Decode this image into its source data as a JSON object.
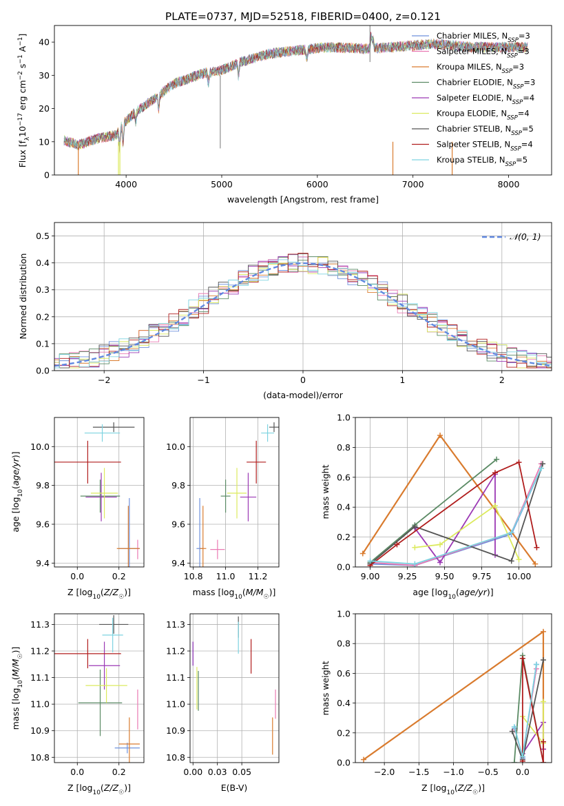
{
  "figure_title": "PLATE=0737, MJD=52518, FIBERID=0400, z=0.121",
  "models": [
    {
      "label": "Chabrier MILES, N",
      "sub": "SSP",
      "suffix": "=3",
      "color": "#6d90dc"
    },
    {
      "label": "Salpeter MILES, N",
      "sub": "SSP",
      "suffix": "=3",
      "color": "#ea7ab3"
    },
    {
      "label": "Kroupa MILES, N",
      "sub": "SSP",
      "suffix": "=3",
      "color": "#d97b2e"
    },
    {
      "label": "Chabrier ELODIE, N",
      "sub": "SSP",
      "suffix": "=3",
      "color": "#5a8a64"
    },
    {
      "label": "Salpeter ELODIE, N",
      "sub": "SSP",
      "suffix": "=4",
      "color": "#9b38b4"
    },
    {
      "label": "Kroupa ELODIE, N",
      "sub": "SSP",
      "suffix": "=4",
      "color": "#dcea5e"
    },
    {
      "label": "Chabrier STELIB, N",
      "sub": "SSP",
      "suffix": "=5",
      "color": "#545454"
    },
    {
      "label": "Salpeter STELIB, N",
      "sub": "SSP",
      "suffix": "=4",
      "color": "#b01c1c"
    },
    {
      "label": "Kroupa STELIB, N",
      "sub": "SSP",
      "suffix": "=5",
      "color": "#7dd3e0"
    }
  ],
  "chart_data": [
    {
      "id": "spectrum",
      "type": "line",
      "xlabel": "wavelength [Angstrom, rest frame]",
      "ylabel": "Flux [fλ10⁻¹⁷ erg cm⁻² s⁻¹ A⁻¹]",
      "xlim": [
        3250,
        8450
      ],
      "ylim": [
        0,
        45
      ],
      "xticks": [
        4000,
        5000,
        6000,
        7000,
        8000
      ],
      "yticks": [
        0,
        10,
        20,
        30,
        40
      ],
      "grid": false,
      "legend": "top-right",
      "x_range_data": [
        3350,
        8200
      ],
      "continuum_points": [
        [
          3350,
          10.5
        ],
        [
          3500,
          9
        ],
        [
          3700,
          11
        ],
        [
          3900,
          12
        ],
        [
          3950,
          15
        ],
        [
          4100,
          19
        ],
        [
          4300,
          23
        ],
        [
          4500,
          27.5
        ],
        [
          4800,
          30.5
        ],
        [
          5000,
          31.5
        ],
        [
          5200,
          34
        ],
        [
          5500,
          36.5
        ],
        [
          5800,
          37.5
        ],
        [
          6100,
          38.5
        ],
        [
          6500,
          38
        ],
        [
          6800,
          38.5
        ],
        [
          7200,
          39.5
        ],
        [
          7600,
          38.5
        ],
        [
          8200,
          38.5
        ]
      ]
    },
    {
      "id": "residuals",
      "type": "histogram",
      "xlabel": "(data-model)/error",
      "ylabel": "Normed distribution",
      "xlim": [
        -2.5,
        2.5
      ],
      "ylim": [
        0,
        0.55
      ],
      "xticks": [
        -2,
        -1,
        0,
        1,
        2
      ],
      "yticks": [
        0.0,
        0.1,
        0.2,
        0.3,
        0.4,
        0.5
      ],
      "grid": true,
      "legend": "top-right",
      "reference_curve_label": "𝒩(0, 1)",
      "bin_width": 0.1
    },
    {
      "id": "age-vs-Z",
      "type": "errorbar",
      "xlabel": "Z [log₁₀(Z/Z☉)]",
      "ylabel": "age  [log₁₀(age/yr)]",
      "xlim": [
        -0.11,
        0.32
      ],
      "ylim": [
        9.38,
        10.15
      ],
      "xticks": [
        0.0,
        0.2
      ],
      "yticks": [
        9.4,
        9.6,
        9.8,
        10.0
      ],
      "points": [
        {
          "x": 0.25,
          "xe": 0.05,
          "y": 9.475,
          "ye": 0.26
        },
        {
          "x": 0.29,
          "xe": 0.0,
          "y": 9.47,
          "ye": 0.05
        },
        {
          "x": 0.245,
          "xe": 0.055,
          "y": 9.475,
          "ye": 0.22
        },
        {
          "x": 0.11,
          "xe": 0.095,
          "y": 9.745,
          "ye": 0.085
        },
        {
          "x": 0.115,
          "xe": 0.075,
          "y": 9.74,
          "ye": 0.125
        },
        {
          "x": 0.13,
          "xe": 0.065,
          "y": 9.76,
          "ye": 0.13
        },
        {
          "x": 0.175,
          "xe": 0.1,
          "y": 10.1,
          "ye": 0.025
        },
        {
          "x": 0.05,
          "xe": 0.16,
          "y": 9.92,
          "ye": 0.11
        },
        {
          "x": 0.12,
          "xe": 0.085,
          "y": 10.07,
          "ye": 0.045
        }
      ]
    },
    {
      "id": "age-vs-mass",
      "type": "errorbar",
      "xlabel": "mass [log₁₀(M/M☉)]",
      "ylabel": "",
      "xlim": [
        10.78,
        11.33
      ],
      "ylim": [
        9.38,
        10.15
      ],
      "xticks": [
        10.8,
        11.0,
        11.2
      ],
      "yticks": [
        9.4,
        9.6,
        9.8,
        10.0
      ],
      "points": [
        {
          "x": 10.84,
          "xe": 0.02,
          "y": 9.475,
          "ye": 0.26
        },
        {
          "x": 10.95,
          "xe": 0.045,
          "y": 9.47,
          "ye": 0.05
        },
        {
          "x": 10.86,
          "xe": 0.02,
          "y": 9.475,
          "ye": 0.22
        },
        {
          "x": 11.0,
          "xe": 0.03,
          "y": 9.745,
          "ye": 0.085
        },
        {
          "x": 11.14,
          "xe": 0.05,
          "y": 9.74,
          "ye": 0.125
        },
        {
          "x": 11.07,
          "xe": 0.06,
          "y": 9.76,
          "ye": 0.13
        },
        {
          "x": 11.3,
          "xe": 0.03,
          "y": 10.1,
          "ye": 0.025
        },
        {
          "x": 11.19,
          "xe": 0.06,
          "y": 9.92,
          "ye": 0.11
        },
        {
          "x": 11.26,
          "xe": 0.04,
          "y": 10.07,
          "ye": 0.045
        }
      ]
    },
    {
      "id": "mass-weight-vs-age",
      "type": "line",
      "xlabel": "age  [log₁₀(age/yr)]",
      "ylabel": "mass weight",
      "xlim": [
        8.9,
        10.22
      ],
      "ylim": [
        0.0,
        1.0
      ],
      "xticks": [
        9.0,
        9.25,
        9.5,
        9.75,
        10.0
      ],
      "yticks": [
        0.0,
        0.2,
        0.4,
        0.6,
        0.8,
        1.0
      ],
      "grid": true,
      "series": [
        {
          "x": [
            9.0,
            9.3,
            9.95,
            10.15
          ],
          "y": [
            0.02,
            0.01,
            0.22,
            0.66
          ]
        },
        {
          "x": [
            9.0,
            9.3,
            9.95,
            10.15
          ],
          "y": [
            0.03,
            0.01,
            0.23,
            0.69
          ]
        },
        {
          "x": [
            8.95,
            9.47,
            10.11
          ],
          "y": [
            0.09,
            0.88,
            0.02
          ]
        },
        {
          "x": [
            9.0,
            9.3,
            9.85
          ],
          "y": [
            0.03,
            0.28,
            0.72
          ]
        },
        {
          "x": [
            9.3,
            9.47,
            9.84,
            9.84
          ],
          "y": [
            0.26,
            0.03,
            0.62,
            0.08
          ]
        },
        {
          "x": [
            9.3,
            9.47,
            9.84,
            10.0
          ],
          "y": [
            0.13,
            0.15,
            0.41,
            0.05
          ]
        },
        {
          "x": [
            9.0,
            9.3,
            9.95,
            10.16
          ],
          "y": [
            0.02,
            0.27,
            0.04,
            0.69
          ]
        },
        {
          "x": [
            9.0,
            9.18,
            9.84,
            10.0,
            10.12
          ],
          "y": [
            0.01,
            0.15,
            0.63,
            0.7,
            0.13
          ]
        },
        {
          "x": [
            9.0,
            9.3,
            9.95,
            10.15
          ],
          "y": [
            0.04,
            0.02,
            0.23,
            0.66
          ]
        }
      ]
    },
    {
      "id": "mass-vs-Z",
      "type": "errorbar",
      "xlabel": "Z [log₁₀(Z/Z☉)]",
      "ylabel": "mass [log₁₀(M/M☉)]",
      "xlim": [
        -0.11,
        0.32
      ],
      "ylim": [
        10.78,
        11.34
      ],
      "xticks": [
        0.0,
        0.2
      ],
      "yticks": [
        10.8,
        10.9,
        11.0,
        11.1,
        11.2,
        11.3
      ],
      "points": [
        {
          "x": 0.24,
          "xe": 0.06,
          "y": 10.835,
          "ye": 0.02
        },
        {
          "x": 0.29,
          "xe": 0.0,
          "y": 10.98,
          "ye": 0.075
        },
        {
          "x": 0.25,
          "xe": 0.05,
          "y": 10.85,
          "ye": 0.1
        },
        {
          "x": 0.11,
          "xe": 0.105,
          "y": 11.005,
          "ye": 0.125
        },
        {
          "x": 0.13,
          "xe": 0.075,
          "y": 11.145,
          "ye": 0.09
        },
        {
          "x": 0.14,
          "xe": 0.1,
          "y": 11.07,
          "ye": 0.065
        },
        {
          "x": 0.175,
          "xe": 0.07,
          "y": 11.3,
          "ye": 0.035
        },
        {
          "x": 0.05,
          "xe": 0.16,
          "y": 11.19,
          "ye": 0.055
        },
        {
          "x": 0.17,
          "xe": 0.05,
          "y": 11.26,
          "ye": 0.065
        }
      ]
    },
    {
      "id": "mass-vs-EBV",
      "type": "errorbar",
      "xlabel": "E(B-V)",
      "ylabel": "",
      "xlim": [
        -0.003,
        0.088
      ],
      "ylim": [
        10.78,
        11.34
      ],
      "xticks": [
        0.0,
        0.025,
        0.05
      ],
      "yticks": [
        10.8,
        10.9,
        11.0,
        11.1,
        11.2,
        11.3
      ],
      "points": [
        {
          "x": 0.0,
          "xe": 0.0,
          "y": 11.19,
          "ye": 0.045
        },
        {
          "x": 0.0845,
          "xe": 0.0,
          "y": 11.0,
          "ye": 0.055
        },
        {
          "x": 0.0815,
          "xe": 0.0,
          "y": 10.88,
          "ye": 0.07
        },
        {
          "x": 0.0055,
          "xe": 0.0,
          "y": 11.05,
          "ye": 0.075
        },
        {
          "x": 0.0,
          "xe": 0.0,
          "y": 11.19,
          "ye": 0.045
        },
        {
          "x": 0.004,
          "xe": 0.0,
          "y": 11.06,
          "ye": 0.08
        },
        {
          "x": 0.0465,
          "xe": 0.0,
          "y": 11.29,
          "ye": 0.04
        },
        {
          "x": 0.0595,
          "xe": 0.0,
          "y": 11.18,
          "ye": 0.065
        },
        {
          "x": 0.0465,
          "xe": 0.0,
          "y": 11.25,
          "ye": 0.06
        }
      ]
    },
    {
      "id": "mass-weight-vs-Z",
      "type": "line",
      "xlabel": "Z [log₁₀(Z/Z☉)]",
      "ylabel": "mass weight",
      "xlim": [
        -2.42,
        0.42
      ],
      "ylim": [
        0.0,
        1.0
      ],
      "xticks": [
        -2.0,
        -1.5,
        -1.0,
        -0.5,
        0.0
      ],
      "yticks": [
        0.0,
        0.2,
        0.4,
        0.6,
        0.8,
        1.0
      ],
      "grid": true,
      "series": [
        {
          "x": [
            -0.11,
            0.0,
            0.2
          ],
          "y": [
            0.23,
            0.03,
            0.66
          ]
        },
        {
          "x": [
            -0.11,
            0.0,
            0.2
          ],
          "y": [
            0.22,
            0.04,
            0.63
          ]
        },
        {
          "x": [
            -2.3,
            0.3,
            0.3
          ],
          "y": [
            0.02,
            0.88,
            0.09
          ]
        },
        {
          "x": [
            -0.12,
            0.0,
            0.3
          ],
          "y": [
            0.0,
            0.72,
            0.0
          ]
        },
        {
          "x": [
            0.0,
            0.3,
            0.3
          ],
          "y": [
            0.06,
            0.27,
            0.09
          ]
        },
        {
          "x": [
            0.0,
            0.3,
            0.3
          ],
          "y": [
            0.31,
            0.13,
            0.41
          ]
        },
        {
          "x": [
            -0.15,
            0.0,
            0.3
          ],
          "y": [
            0.21,
            0.02,
            0.69
          ]
        },
        {
          "x": [
            0.0,
            0.0,
            0.3,
            0.3
          ],
          "y": [
            0.01,
            0.7,
            0.0,
            0.14
          ]
        },
        {
          "x": [
            -0.12,
            0.0,
            0.2
          ],
          "y": [
            0.24,
            0.04,
            0.66
          ]
        }
      ]
    }
  ]
}
